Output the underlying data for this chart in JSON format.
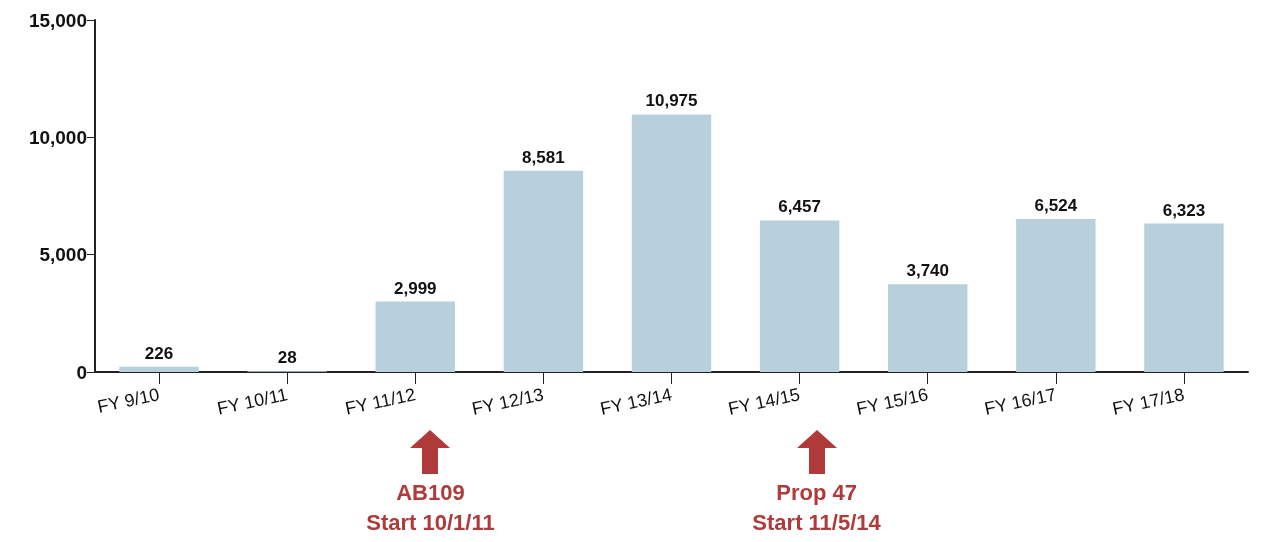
{
  "chart_data": {
    "type": "bar",
    "categories": [
      "FY 9/10",
      "FY 10/11",
      "FY 11/12",
      "FY 12/13",
      "FY 13/14",
      "FY 14/15",
      "FY 15/16",
      "FY 16/17",
      "FY 17/18"
    ],
    "values": [
      226,
      28,
      2999,
      8581,
      10975,
      6457,
      3740,
      6524,
      6323
    ],
    "value_labels": [
      "226",
      "28",
      "2,999",
      "8,581",
      "10,975",
      "6,457",
      "3,740",
      "6,524",
      "6,323"
    ],
    "color": "#b7d0dc",
    "grid": false,
    "ylim": [
      0,
      15000
    ],
    "yticks": [
      {
        "value": 0,
        "label": "0"
      },
      {
        "value": 5000,
        "label": "5,000"
      },
      {
        "value": 10000,
        "label": "10,000"
      },
      {
        "value": 15000,
        "label": "15,000"
      }
    ],
    "annotations": [
      "AB109\nStart 10/1/11",
      "Prop 47\nStart 11/5/14"
    ]
  }
}
